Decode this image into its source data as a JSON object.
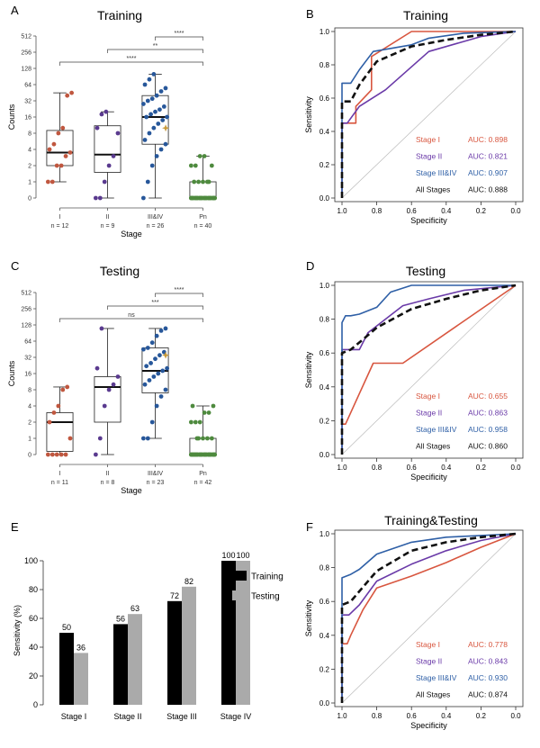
{
  "panels": {
    "A": {
      "letter": "A",
      "chart_data": {
        "type": "boxplot",
        "title": "Training",
        "xlabel": "Stage",
        "ylabel": "Counts",
        "y_scale": "pseudo-log2",
        "y_ticks": [
          "0",
          "1",
          "2",
          "4",
          "8",
          "16",
          "32",
          "64",
          "128",
          "256",
          "512"
        ],
        "categories": [
          "I",
          "II",
          "III&IV",
          "Pn"
        ],
        "n_labels": [
          "n = 12",
          "n = 9",
          "n = 26",
          "n = 40"
        ],
        "colors": [
          "#c0573f",
          "#5a3a8f",
          "#27579a",
          "#4e8a3e"
        ],
        "boxes": [
          {
            "min": 1,
            "q1": 2,
            "median": 3.5,
            "q3": 9,
            "max": 45
          },
          {
            "min": 0,
            "q1": 1.5,
            "median": 3.2,
            "q3": 11,
            "max": 20
          },
          {
            "min": 0,
            "q1": 5,
            "median": 16,
            "q3": 40,
            "max": 100
          },
          {
            "min": 0,
            "q1": 0,
            "median": 0,
            "q3": 1,
            "max": 3
          }
        ],
        "points": [
          [
            1,
            1,
            2,
            2,
            3,
            3.5,
            4,
            5,
            8,
            10,
            40,
            45
          ],
          [
            0,
            0,
            1,
            2,
            3,
            8,
            10,
            18,
            20
          ],
          [
            0,
            1,
            2,
            3,
            4,
            5,
            6,
            8,
            10,
            12,
            14,
            16,
            16,
            18,
            20,
            22,
            25,
            28,
            32,
            35,
            40,
            48,
            55,
            64,
            80,
            100
          ],
          [
            0,
            0,
            0,
            0,
            0,
            0,
            0,
            0,
            0,
            0,
            0,
            0,
            0,
            0,
            0,
            0,
            0,
            0,
            0,
            0,
            0,
            0,
            0,
            0,
            0,
            0,
            0,
            0,
            0,
            1,
            1,
            1,
            1,
            2,
            2,
            2,
            3,
            3,
            1,
            0
          ]
        ],
        "outlier_marker": {
          "group": 2,
          "value": 10
        },
        "brackets": [
          {
            "from": 2,
            "to": 3,
            "label": "****"
          },
          {
            "from": 1,
            "to": 3,
            "label": "**"
          },
          {
            "from": 0,
            "to": 3,
            "label": "****"
          }
        ]
      }
    },
    "B": {
      "letter": "B",
      "chart_data": {
        "type": "line",
        "title": "Training",
        "xlabel": "Specificity",
        "ylabel": "Sensitivity",
        "x_reversed": true,
        "xlim": [
          1.0,
          0.0
        ],
        "ylim": [
          0.0,
          1.0
        ],
        "x_ticks": [
          "1.0",
          "0.8",
          "0.6",
          "0.4",
          "0.2",
          "0.0"
        ],
        "y_ticks": [
          "0.0",
          "0.2",
          "0.4",
          "0.6",
          "0.8",
          "1.0"
        ],
        "series": [
          {
            "name": "Stage I",
            "auc": "AUC: 0.898",
            "color": "#d8563f",
            "dash": false,
            "x": [
              1.0,
              1.0,
              0.92,
              0.92,
              0.83,
              0.83,
              0.6,
              0.5,
              0.0
            ],
            "y": [
              0.0,
              0.45,
              0.45,
              0.55,
              0.65,
              0.85,
              1.0,
              1.0,
              1.0
            ]
          },
          {
            "name": "Stage II",
            "auc": "AUC: 0.821",
            "color": "#6a3aa8",
            "dash": false,
            "x": [
              1.0,
              1.0,
              0.97,
              0.9,
              0.75,
              0.5,
              0.2,
              0.0
            ],
            "y": [
              0.0,
              0.45,
              0.45,
              0.55,
              0.65,
              0.88,
              0.97,
              1.0
            ]
          },
          {
            "name": "Stage III&IV",
            "auc": "AUC: 0.907",
            "color": "#2e5fa6",
            "dash": false,
            "x": [
              1.0,
              1.0,
              0.95,
              0.9,
              0.82,
              0.6,
              0.5,
              0.3,
              0.0
            ],
            "y": [
              0.0,
              0.69,
              0.69,
              0.77,
              0.88,
              0.92,
              0.96,
              0.99,
              1.0
            ]
          },
          {
            "name": "All Stages",
            "auc": "AUC: 0.888",
            "color": "#111111",
            "dash": true,
            "x": [
              1.0,
              1.0,
              0.95,
              0.9,
              0.8,
              0.6,
              0.4,
              0.2,
              0.0
            ],
            "y": [
              0.0,
              0.58,
              0.58,
              0.68,
              0.82,
              0.91,
              0.95,
              0.98,
              1.0
            ]
          }
        ]
      }
    },
    "C": {
      "letter": "C",
      "chart_data": {
        "type": "boxplot",
        "title": "Testing",
        "xlabel": "Stage",
        "ylabel": "Counts",
        "y_scale": "pseudo-log2",
        "y_ticks": [
          "0",
          "1",
          "2",
          "4",
          "8",
          "16",
          "32",
          "64",
          "128",
          "256",
          "512"
        ],
        "categories": [
          "I",
          "II",
          "III&IV",
          "Pn"
        ],
        "n_labels": [
          "n = 11",
          "n = 8",
          "n = 23",
          "n = 42"
        ],
        "colors": [
          "#c0573f",
          "#5a3a8f",
          "#27579a",
          "#4e8a3e"
        ],
        "boxes": [
          {
            "min": 0,
            "q1": 0.2,
            "median": 2,
            "q3": 3,
            "max": 9
          },
          {
            "min": 0,
            "q1": 2,
            "median": 9,
            "q3": 14,
            "max": 110
          },
          {
            "min": 1,
            "q1": 7,
            "median": 18,
            "q3": 48,
            "max": 110
          },
          {
            "min": 0,
            "q1": 0,
            "median": 0,
            "q3": 1,
            "max": 4
          }
        ],
        "points": [
          [
            0,
            0,
            0,
            0,
            0,
            1,
            2,
            3,
            4,
            8,
            9
          ],
          [
            0,
            1,
            4,
            8,
            10,
            14,
            20,
            110
          ],
          [
            1,
            1,
            2,
            4,
            6,
            8,
            10,
            12,
            14,
            16,
            18,
            20,
            22,
            25,
            30,
            35,
            40,
            45,
            48,
            60,
            80,
            100,
            110
          ],
          [
            0,
            0,
            0,
            0,
            0,
            0,
            0,
            0,
            0,
            0,
            0,
            0,
            0,
            0,
            0,
            0,
            0,
            0,
            0,
            0,
            0,
            0,
            0,
            0,
            0,
            0,
            0,
            0,
            0,
            0,
            1,
            1,
            1,
            1,
            2,
            2,
            2,
            3,
            3,
            4,
            4,
            1
          ]
        ],
        "outlier_marker": {
          "group": 2,
          "value": 35
        },
        "brackets": [
          {
            "from": 2,
            "to": 3,
            "label": "****"
          },
          {
            "from": 1,
            "to": 3,
            "label": "***"
          },
          {
            "from": 0,
            "to": 3,
            "label": "ns"
          }
        ]
      }
    },
    "D": {
      "letter": "D",
      "chart_data": {
        "type": "line",
        "title": "Testing",
        "xlabel": "Specificity",
        "ylabel": "Sensitivity",
        "x_reversed": true,
        "xlim": [
          1.0,
          0.0
        ],
        "ylim": [
          0.0,
          1.0
        ],
        "x_ticks": [
          "1.0",
          "0.8",
          "0.6",
          "0.4",
          "0.2",
          "0.0"
        ],
        "y_ticks": [
          "0.0",
          "0.2",
          "0.4",
          "0.6",
          "0.8",
          "1.0"
        ],
        "series": [
          {
            "name": "Stage I",
            "auc": "AUC: 0.655",
            "color": "#d8563f",
            "dash": false,
            "x": [
              1.0,
              1.0,
              0.98,
              0.9,
              0.82,
              0.65,
              0.0
            ],
            "y": [
              0.0,
              0.18,
              0.18,
              0.36,
              0.54,
              0.54,
              1.0
            ]
          },
          {
            "name": "Stage II",
            "auc": "AUC: 0.863",
            "color": "#6a3aa8",
            "dash": false,
            "x": [
              1.0,
              1.0,
              0.95,
              0.9,
              0.85,
              0.65,
              0.5,
              0.3,
              0.0
            ],
            "y": [
              0.0,
              0.62,
              0.62,
              0.62,
              0.72,
              0.88,
              0.92,
              0.97,
              1.0
            ]
          },
          {
            "name": "Stage III&IV",
            "auc": "AUC: 0.958",
            "color": "#2e5fa6",
            "dash": false,
            "x": [
              1.0,
              1.0,
              0.98,
              0.95,
              0.9,
              0.8,
              0.72,
              0.6,
              0.0
            ],
            "y": [
              0.0,
              0.78,
              0.82,
              0.82,
              0.83,
              0.87,
              0.96,
              1.0,
              1.0
            ]
          },
          {
            "name": "All Stages",
            "auc": "AUC: 0.860",
            "color": "#111111",
            "dash": true,
            "x": [
              1.0,
              1.0,
              0.95,
              0.88,
              0.8,
              0.6,
              0.4,
              0.2,
              0.0
            ],
            "y": [
              0.0,
              0.6,
              0.62,
              0.68,
              0.75,
              0.86,
              0.92,
              0.97,
              1.0
            ]
          }
        ]
      }
    },
    "E": {
      "letter": "E",
      "chart_data": {
        "type": "bar",
        "title": "",
        "xlabel": "",
        "ylabel": "Sensitivity (%)",
        "ylim": [
          0,
          100
        ],
        "y_ticks": [
          "0",
          "20",
          "40",
          "60",
          "80",
          "100"
        ],
        "categories": [
          "Stage I",
          "Stage II",
          "Stage III",
          "Stage IV"
        ],
        "series": [
          {
            "name": "Training",
            "color": "#000000",
            "values": [
              50,
              56,
              72,
              100
            ],
            "labels": [
              "50",
              "56",
              "72",
              "100"
            ]
          },
          {
            "name": "Testing",
            "color": "#aaaaaa",
            "values": [
              36,
              63,
              82,
              100
            ],
            "labels": [
              "36",
              "63",
              "82",
              "100"
            ]
          }
        ]
      }
    },
    "F": {
      "letter": "F",
      "chart_data": {
        "type": "line",
        "title": "Training&Testing",
        "xlabel": "Specificity",
        "ylabel": "Sensitivity",
        "x_reversed": true,
        "xlim": [
          1.0,
          0.0
        ],
        "ylim": [
          0.0,
          1.0
        ],
        "x_ticks": [
          "1.0",
          "0.8",
          "0.6",
          "0.4",
          "0.2",
          "0.0"
        ],
        "y_ticks": [
          "0.0",
          "0.2",
          "0.4",
          "0.6",
          "0.8",
          "1.0"
        ],
        "series": [
          {
            "name": "Stage I",
            "auc": "AUC: 0.778",
            "color": "#d8563f",
            "dash": false,
            "x": [
              1.0,
              1.0,
              0.97,
              0.95,
              0.88,
              0.8,
              0.6,
              0.4,
              0.2,
              0.0
            ],
            "y": [
              0.0,
              0.35,
              0.35,
              0.4,
              0.55,
              0.68,
              0.75,
              0.83,
              0.92,
              1.0
            ]
          },
          {
            "name": "Stage II",
            "auc": "AUC: 0.843",
            "color": "#6a3aa8",
            "dash": false,
            "x": [
              1.0,
              1.0,
              0.96,
              0.9,
              0.8,
              0.6,
              0.4,
              0.2,
              0.0
            ],
            "y": [
              0.0,
              0.52,
              0.52,
              0.58,
              0.72,
              0.82,
              0.9,
              0.96,
              1.0
            ]
          },
          {
            "name": "Stage III&IV",
            "auc": "AUC: 0.930",
            "color": "#2e5fa6",
            "dash": false,
            "x": [
              1.0,
              1.0,
              0.95,
              0.9,
              0.8,
              0.6,
              0.4,
              0.2,
              0.0
            ],
            "y": [
              0.0,
              0.74,
              0.76,
              0.79,
              0.88,
              0.95,
              0.98,
              0.99,
              1.0
            ]
          },
          {
            "name": "All Stages",
            "auc": "AUC: 0.874",
            "color": "#111111",
            "dash": true,
            "x": [
              1.0,
              1.0,
              0.95,
              0.9,
              0.8,
              0.6,
              0.4,
              0.2,
              0.0
            ],
            "y": [
              0.0,
              0.58,
              0.6,
              0.66,
              0.78,
              0.9,
              0.95,
              0.98,
              1.0
            ]
          }
        ]
      }
    }
  }
}
